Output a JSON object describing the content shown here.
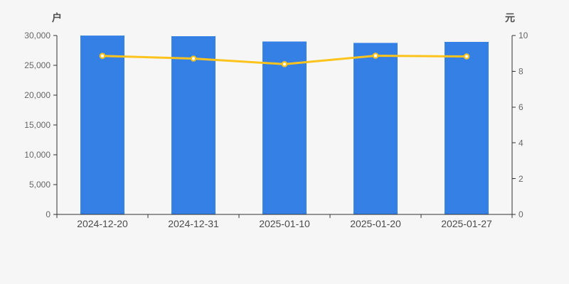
{
  "chart_data": {
    "type": "bar",
    "title": "",
    "categories": [
      "2024-12-20",
      "2024-12-31",
      "2025-01-10",
      "2025-01-20",
      "2025-01-27"
    ],
    "series": [
      {
        "id": "bar-series",
        "kind": "bar",
        "y_axis": "left",
        "color": "#3580e4",
        "values": [
          29990,
          29880,
          28990,
          28760,
          28930
        ]
      },
      {
        "id": "line-series",
        "kind": "line",
        "y_axis": "right",
        "color": "#fbc31c",
        "point_fill": "#ffffff",
        "values": [
          8.86,
          8.71,
          8.4,
          8.87,
          8.83
        ]
      }
    ],
    "left_axis": {
      "name": "户",
      "min": 0,
      "max": 30000,
      "step": 5000,
      "labels": [
        "0",
        "5,000",
        "10,000",
        "15,000",
        "20,000",
        "25,000",
        "30,000"
      ]
    },
    "right_axis": {
      "name": "元",
      "min": 0,
      "max": 10,
      "step": 2,
      "labels": [
        "0",
        "2",
        "4",
        "6",
        "8",
        "10"
      ]
    },
    "grid_lines": false,
    "legend": "none",
    "colors": {
      "background": "#f6f6f7",
      "axis_line": "#333333",
      "y_tick_label": "#666666",
      "x_tick_label": "#4a4a4a"
    }
  }
}
